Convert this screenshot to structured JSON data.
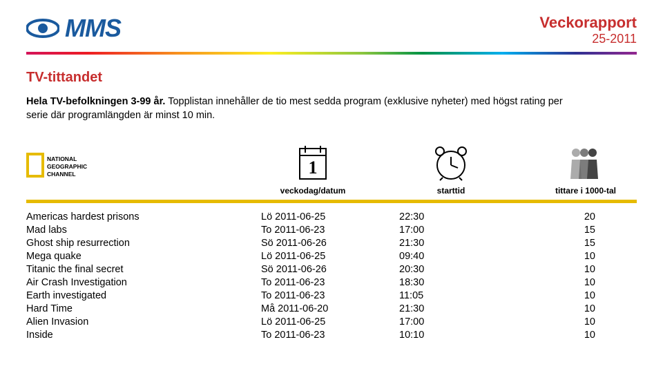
{
  "header": {
    "brand": "MMS",
    "report_label": "Veckorapport",
    "report_period": "25-2011"
  },
  "section": {
    "title": "TV-tittandet",
    "intro_bold": "Hela TV-befolkningen 3-99 år.",
    "intro_rest": " Topplistan innehåller de tio mest sedda program (exklusive nyheter) med högst rating per serie där programlängden är minst 10 min."
  },
  "column_icons": {
    "channel_top": "NATIONAL",
    "channel_mid": "GEOGRAPHIC",
    "channel_bot": "CHANNEL",
    "col2_label": "veckodag/datum",
    "col3_label": "starttid",
    "col4_label": "tittare i 1000-tal"
  },
  "rows": [
    {
      "title": "Americas hardest prisons",
      "date": "Lö 2011-06-25",
      "time": "22:30",
      "viewers": "20"
    },
    {
      "title": "Mad labs",
      "date": "To 2011-06-23",
      "time": "17:00",
      "viewers": "15"
    },
    {
      "title": "Ghost ship resurrection",
      "date": "Sö 2011-06-26",
      "time": "21:30",
      "viewers": "15"
    },
    {
      "title": "Mega quake",
      "date": "Lö 2011-06-25",
      "time": "09:40",
      "viewers": "10"
    },
    {
      "title": "Titanic the final secret",
      "date": "Sö 2011-06-26",
      "time": "20:30",
      "viewers": "10"
    },
    {
      "title": "Air Crash Investigation",
      "date": "To 2011-06-23",
      "time": "18:30",
      "viewers": "10"
    },
    {
      "title": "Earth investigated",
      "date": "To 2011-06-23",
      "time": "11:05",
      "viewers": "10"
    },
    {
      "title": "Hard Time",
      "date": "Må 2011-06-20",
      "time": "21:30",
      "viewers": "10"
    },
    {
      "title": "Alien Invasion",
      "date": "Lö 2011-06-25",
      "time": "17:00",
      "viewers": "10"
    },
    {
      "title": "Inside",
      "date": "To 2011-06-23",
      "time": "10:10",
      "viewers": "10"
    }
  ]
}
